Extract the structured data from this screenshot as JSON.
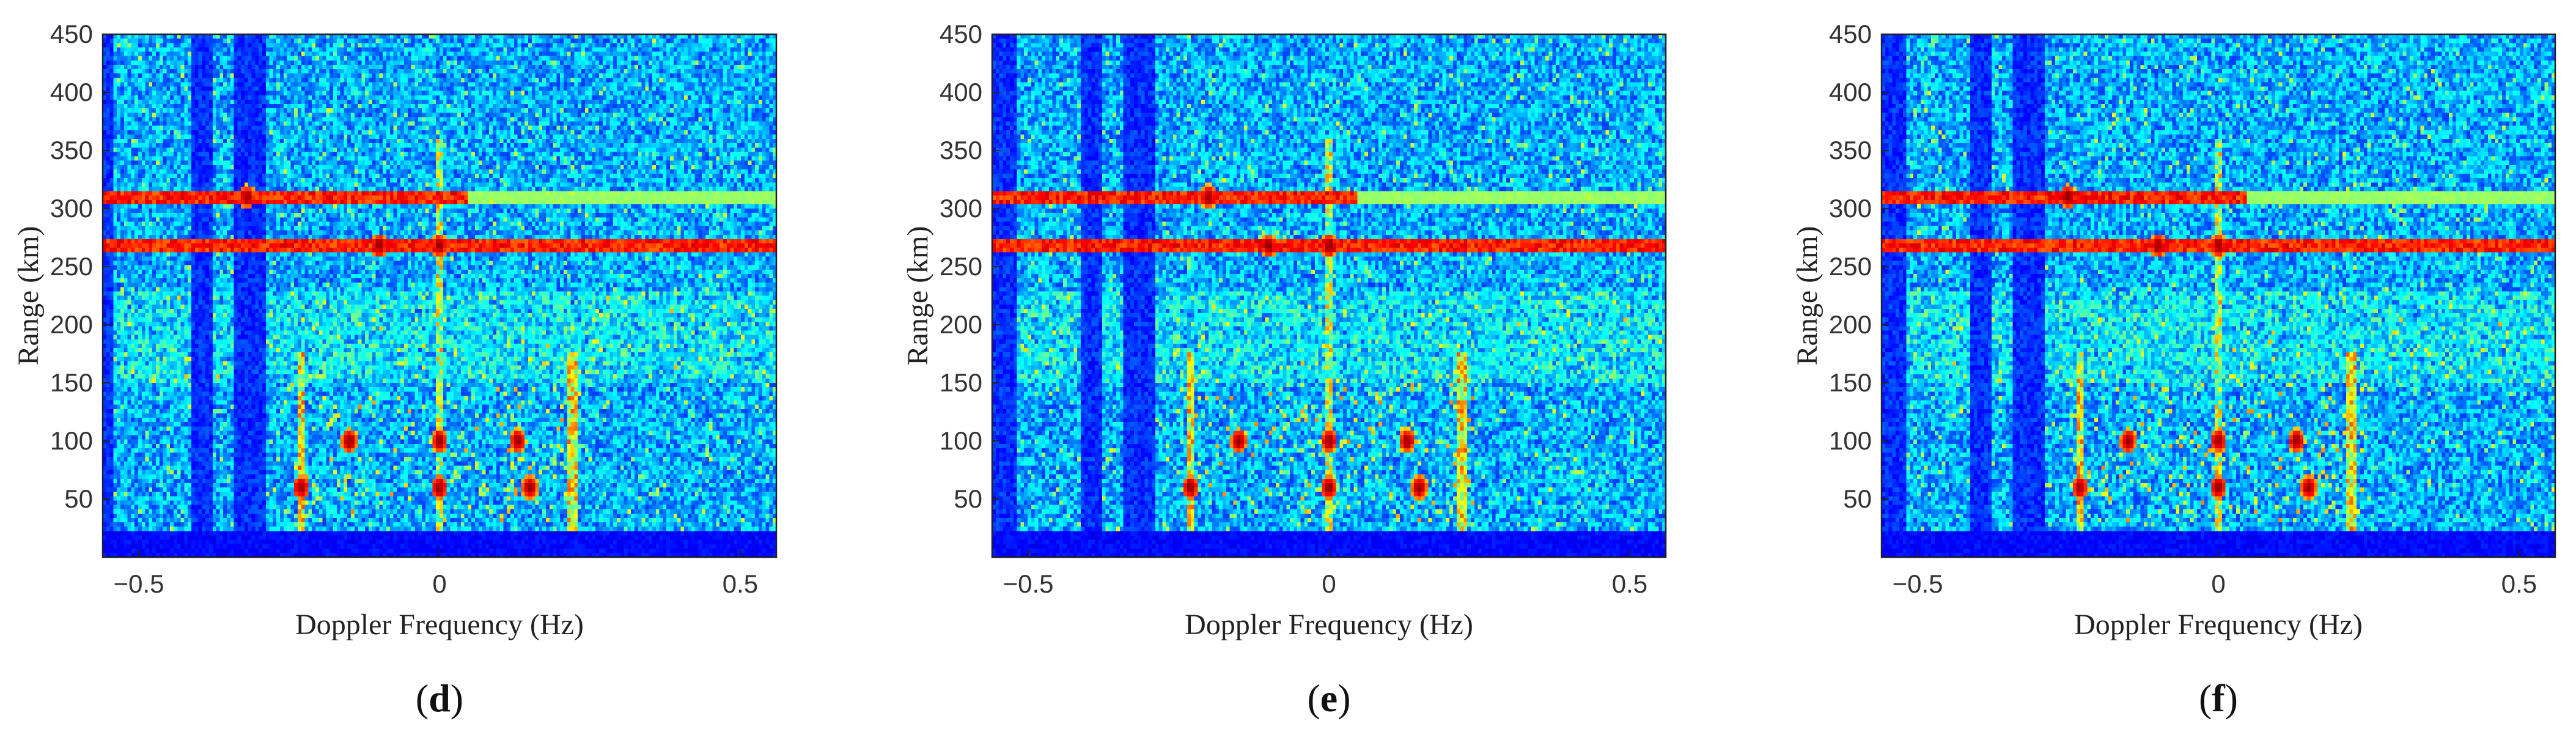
{
  "chart_data": [
    {
      "type": "heatmap",
      "panel_label": "d",
      "xlabel": "Doppler Frequency (Hz)",
      "ylabel": "Range (km)",
      "xlim": [
        -0.56,
        0.56
      ],
      "ylim": [
        0,
        450
      ],
      "xticks": [
        -0.5,
        0,
        0.5
      ],
      "xtick_labels": [
        "−0.5",
        "0",
        "0.5"
      ],
      "yticks": [
        50,
        100,
        150,
        200,
        250,
        300,
        350,
        400,
        450
      ],
      "ytick_labels": [
        "50",
        "100",
        "150",
        "200",
        "250",
        "300",
        "350",
        "400",
        "450"
      ],
      "colormap": "jet",
      "features": {
        "horizontal_echoes_km": [
          268,
          309
        ],
        "vertical_lines_hz": [
          -0.23,
          0.22
        ],
        "dark_columns_hz": [
          [
            -0.56,
            -0.54
          ],
          [
            -0.41,
            -0.38
          ],
          [
            -0.34,
            -0.29
          ]
        ],
        "hot_spots": [
          [
            -0.23,
            60
          ],
          [
            -0.15,
            100
          ],
          [
            0.0,
            60
          ],
          [
            0.0,
            100
          ],
          [
            0.15,
            60
          ],
          [
            0.13,
            100
          ],
          [
            -0.32,
            310
          ],
          [
            -0.1,
            268
          ],
          [
            0.0,
            268
          ]
        ]
      }
    },
    {
      "type": "heatmap",
      "panel_label": "e",
      "xlabel": "Doppler Frequency (Hz)",
      "ylabel": "Range (km)",
      "xlim": [
        -0.56,
        0.56
      ],
      "ylim": [
        0,
        450
      ],
      "xticks": [
        -0.5,
        0,
        0.5
      ],
      "xtick_labels": [
        "−0.5",
        "0",
        "0.5"
      ],
      "yticks": [
        50,
        100,
        150,
        200,
        250,
        300,
        350,
        400,
        450
      ],
      "ytick_labels": [
        "50",
        "100",
        "150",
        "200",
        "250",
        "300",
        "350",
        "400",
        "450"
      ],
      "colormap": "jet",
      "features": {
        "horizontal_echoes_km": [
          268,
          309
        ],
        "vertical_lines_hz": [
          -0.23,
          0.22
        ],
        "dark_columns_hz": [
          [
            -0.56,
            -0.52
          ],
          [
            -0.41,
            -0.38
          ],
          [
            -0.34,
            -0.29
          ]
        ],
        "hot_spots": [
          [
            -0.23,
            60
          ],
          [
            -0.15,
            100
          ],
          [
            0.0,
            60
          ],
          [
            0.0,
            100
          ],
          [
            0.15,
            60
          ],
          [
            0.13,
            100
          ],
          [
            -0.2,
            310
          ],
          [
            -0.1,
            268
          ],
          [
            0.0,
            268
          ]
        ]
      }
    },
    {
      "type": "heatmap",
      "panel_label": "f",
      "xlabel": "Doppler Frequency (Hz)",
      "ylabel": "Range (km)",
      "xlim": [
        -0.56,
        0.56
      ],
      "ylim": [
        0,
        450
      ],
      "xticks": [
        -0.5,
        0,
        0.5
      ],
      "xtick_labels": [
        "−0.5",
        "0",
        "0.5"
      ],
      "yticks": [
        50,
        100,
        150,
        200,
        250,
        300,
        350,
        400,
        450
      ],
      "ytick_labels": [
        "50",
        "100",
        "150",
        "200",
        "250",
        "300",
        "350",
        "400",
        "450"
      ],
      "colormap": "jet",
      "features": {
        "horizontal_echoes_km": [
          268,
          309
        ],
        "vertical_lines_hz": [
          -0.23,
          0.22
        ],
        "dark_columns_hz": [
          [
            -0.56,
            -0.52
          ],
          [
            -0.41,
            -0.38
          ],
          [
            -0.34,
            -0.29
          ]
        ],
        "hot_spots": [
          [
            -0.23,
            60
          ],
          [
            -0.15,
            100
          ],
          [
            0.0,
            60
          ],
          [
            0.0,
            100
          ],
          [
            0.15,
            60
          ],
          [
            0.13,
            100
          ],
          [
            -0.25,
            310
          ],
          [
            -0.1,
            268
          ],
          [
            0.0,
            268
          ]
        ]
      }
    }
  ]
}
